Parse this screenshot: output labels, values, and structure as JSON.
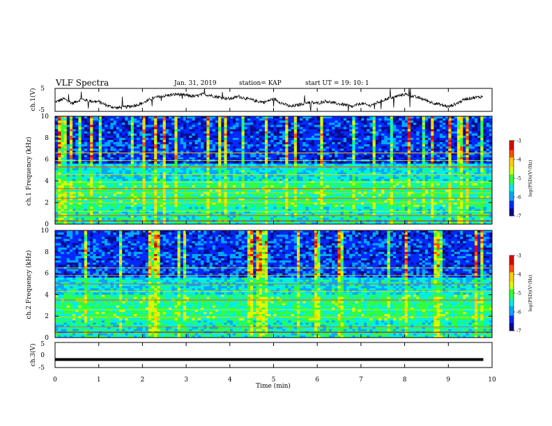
{
  "header": {
    "title": "VLF Spectra",
    "date": "Jan. 31, 2019",
    "station": "station= KAP",
    "start": "start  UT =   19: 10: 1"
  },
  "chart_data": [
    {
      "type": "line",
      "id": "ch1_waveform",
      "ylabel": "ch.1(V)",
      "xlim": [
        0,
        10
      ],
      "ylim": [
        -5,
        5
      ],
      "yticks": [
        "5",
        "-5"
      ],
      "series": [
        {
          "x": [
            0.0,
            0.2,
            0.4,
            0.6,
            0.8,
            1.0,
            1.2,
            1.4,
            1.6,
            1.8,
            2.0,
            2.2,
            2.4,
            2.6,
            2.8,
            3.0,
            3.2,
            3.4,
            3.6,
            3.8,
            4.0,
            4.2,
            4.4,
            4.6,
            4.8,
            5.0,
            5.2,
            5.4,
            5.6,
            5.8,
            6.0,
            6.2,
            6.4,
            6.6,
            6.8,
            7.0,
            7.2,
            7.4,
            7.6,
            7.8,
            8.0,
            8.2,
            8.4,
            8.6,
            8.8,
            9.0,
            9.2,
            9.4,
            9.6,
            9.8
          ],
          "y": [
            -1.0,
            0.5,
            -1.5,
            0.3,
            -0.5,
            -0.8,
            -2.5,
            -3.5,
            -3.2,
            -2.5,
            -1.5,
            0.5,
            1.5,
            2.0,
            2.5,
            2.0,
            1.5,
            2.5,
            1.8,
            1.0,
            0.5,
            1.5,
            0.5,
            -0.5,
            -1.0,
            0.5,
            -1.5,
            -3.0,
            -2.0,
            -1.0,
            -1.5,
            -0.5,
            -1.5,
            -2.0,
            -3.0,
            -1.5,
            -2.5,
            -1.0,
            0.5,
            1.5,
            2.5,
            1.5,
            0.5,
            -1.0,
            -2.0,
            -3.0,
            -1.5,
            0.5,
            1.0,
            1.5
          ]
        }
      ]
    },
    {
      "type": "heatmap",
      "id": "ch1_spectrogram",
      "ylabel": "ch.1 Frequency (kHz)",
      "xlim": [
        0,
        10
      ],
      "ylim": [
        0,
        10
      ],
      "yticks": [
        "0",
        "2",
        "4",
        "6",
        "8",
        "10"
      ],
      "colorbar": {
        "label": "log(PSD)(V²/Hz)",
        "range": [
          -7,
          -3
        ],
        "ticks": [
          "-3",
          "-4",
          "-5",
          "-6",
          "-7"
        ]
      }
    },
    {
      "type": "heatmap",
      "id": "ch2_spectrogram",
      "ylabel": "ch.2 Frequency (kHz)",
      "xlim": [
        0,
        10
      ],
      "ylim": [
        0,
        10
      ],
      "yticks": [
        "0",
        "2",
        "4",
        "6",
        "8",
        "10"
      ],
      "colorbar": {
        "label": "log(PSD)(V²/Hz)",
        "range": [
          -7,
          -3
        ],
        "ticks": [
          "-3",
          "-4",
          "-5",
          "-6",
          "-7"
        ]
      }
    },
    {
      "type": "line",
      "id": "ch3_waveform",
      "ylabel": "ch.3(V)",
      "xlim": [
        0,
        10
      ],
      "ylim": [
        -5,
        5
      ],
      "yticks": [
        "5",
        "0",
        "-5"
      ],
      "series": [
        {
          "x": [
            0,
            9.8
          ],
          "y": [
            -1.8,
            -1.8
          ]
        }
      ]
    }
  ],
  "xaxis": {
    "label": "Time  (min)",
    "ticks": [
      "0",
      "1",
      "2",
      "3",
      "4",
      "5",
      "6",
      "7",
      "8",
      "9",
      "10"
    ]
  },
  "colormap": [
    "#0a0a8c",
    "#0028ff",
    "#00a8ff",
    "#00f0e0",
    "#30ff40",
    "#d8ff00",
    "#ffd000",
    "#ff5000",
    "#e00000"
  ]
}
